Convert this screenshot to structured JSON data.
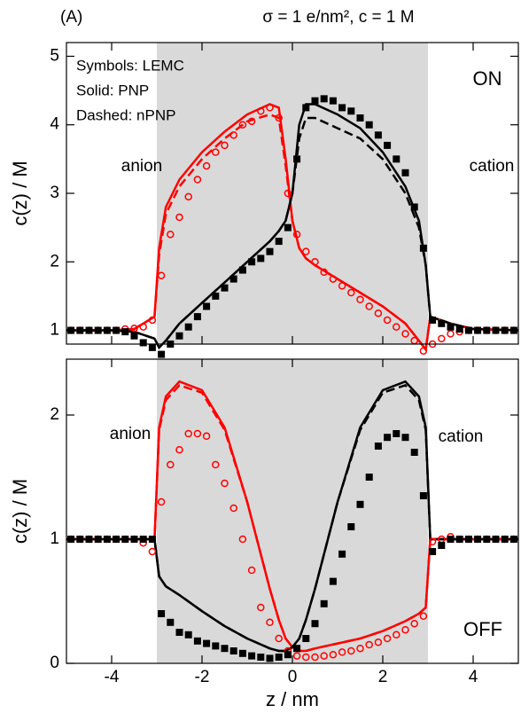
{
  "chart_data": [
    {
      "type": "line",
      "panel_label": "(A)",
      "title": "σ = 1 e/nm², c = 1 M",
      "ylabel": "c(z) / M",
      "xlim": [
        -5,
        5
      ],
      "xticks": [
        -4,
        -2,
        0,
        2,
        4
      ],
      "show_xtick_labels": false,
      "ylim": [
        0.8,
        5.2
      ],
      "yticks": [
        1,
        2,
        3,
        4,
        5
      ],
      "shade": [
        -3,
        3
      ],
      "shade_color": "#d9d9d9",
      "legend_text": [
        "Symbols: LEMC",
        "Solid: PNP",
        "Dashed: nPNP"
      ],
      "annotations": [
        {
          "text": "anion",
          "color": "#ff0000"
        },
        {
          "text": "cation",
          "color": "#000000"
        },
        {
          "text": "ON",
          "color": "#000000"
        }
      ],
      "series": [
        {
          "color": "#ff0000",
          "dash": false,
          "x": [
            -5,
            -4,
            -3.5,
            -3.05,
            -2.95,
            -2.8,
            -2.5,
            -2,
            -1.5,
            -1,
            -0.5,
            -0.3,
            -0.15,
            0,
            0.15,
            0.3,
            0.5,
            1,
            1.5,
            2,
            2.5,
            2.8,
            2.95,
            3.05,
            3.5,
            4,
            5
          ],
          "values": [
            1.0,
            1.0,
            1.02,
            1.2,
            2.2,
            2.8,
            3.2,
            3.6,
            3.9,
            4.15,
            4.3,
            4.25,
            3.5,
            2.6,
            2.2,
            2.05,
            1.95,
            1.75,
            1.55,
            1.35,
            1.1,
            0.85,
            0.72,
            1.2,
            1.1,
            1.02,
            1.0
          ]
        },
        {
          "color": "#000000",
          "dash": false,
          "x": [
            -5,
            -4,
            -3.5,
            -3.05,
            -2.95,
            -2.8,
            -2.5,
            -2,
            -1.5,
            -1,
            -0.5,
            -0.3,
            -0.15,
            0,
            0.15,
            0.3,
            0.5,
            1,
            1.5,
            2,
            2.5,
            2.8,
            2.95,
            3.05,
            3.5,
            4,
            5
          ],
          "values": [
            1.0,
            1.0,
            0.98,
            0.88,
            0.75,
            0.85,
            1.1,
            1.4,
            1.7,
            2.0,
            2.3,
            2.45,
            2.6,
            3.0,
            4.0,
            4.3,
            4.3,
            4.15,
            3.95,
            3.6,
            3.1,
            2.6,
            1.95,
            1.2,
            1.1,
            1.02,
            1.0
          ]
        },
        {
          "color": "#ff0000",
          "dash": true,
          "x": [
            -5,
            -4,
            -3.5,
            -3.05,
            -2.95,
            -2.8,
            -2.5,
            -2,
            -1.5,
            -1,
            -0.5,
            -0.3,
            -0.15,
            0,
            0.15,
            0.3,
            0.5,
            1,
            1.5,
            2,
            2.5,
            2.8,
            2.95,
            3.05,
            3.5,
            4,
            5
          ],
          "values": [
            1.0,
            1.0,
            1.02,
            1.2,
            2.1,
            2.7,
            3.1,
            3.5,
            3.8,
            4.05,
            4.15,
            4.1,
            3.4,
            2.6,
            2.2,
            2.05,
            1.95,
            1.75,
            1.55,
            1.35,
            1.1,
            0.85,
            0.72,
            1.2,
            1.1,
            1.02,
            1.0
          ]
        },
        {
          "color": "#000000",
          "dash": true,
          "x": [
            -5,
            -4,
            -3.5,
            -3.05,
            -2.95,
            -2.8,
            -2.5,
            -2,
            -1.5,
            -1,
            -0.5,
            -0.3,
            -0.15,
            0,
            0.15,
            0.3,
            0.5,
            1,
            1.5,
            2,
            2.5,
            2.8,
            2.95,
            3.05,
            3.5,
            4,
            5
          ],
          "values": [
            1.0,
            1.0,
            0.98,
            0.88,
            0.75,
            0.85,
            1.1,
            1.4,
            1.7,
            2.0,
            2.3,
            2.45,
            2.6,
            3.0,
            3.8,
            4.1,
            4.1,
            3.95,
            3.8,
            3.5,
            3.0,
            2.5,
            1.95,
            1.2,
            1.1,
            1.02,
            1.0
          ]
        },
        {
          "color": "#ff0000",
          "marker": "circle",
          "x": [
            -4.9,
            -4.7,
            -4.5,
            -4.3,
            -4.1,
            -3.9,
            -3.7,
            -3.5,
            -3.3,
            -3.1,
            -2.9,
            -2.7,
            -2.5,
            -2.3,
            -2.1,
            -1.9,
            -1.7,
            -1.5,
            -1.3,
            -1.1,
            -0.9,
            -0.7,
            -0.5,
            -0.3,
            -0.1,
            0.1,
            0.3,
            0.5,
            0.7,
            0.9,
            1.1,
            1.3,
            1.5,
            1.7,
            1.9,
            2.1,
            2.3,
            2.5,
            2.7,
            2.9,
            3.1,
            3.3,
            3.5,
            3.7,
            3.9,
            4.1,
            4.3,
            4.5,
            4.7,
            4.9
          ],
          "values": [
            1.0,
            1.0,
            1.0,
            1.0,
            1.0,
            1.0,
            1.02,
            1.03,
            1.05,
            1.15,
            1.8,
            2.4,
            2.65,
            2.95,
            3.2,
            3.4,
            3.6,
            3.7,
            3.85,
            4.0,
            4.05,
            4.2,
            4.25,
            4.1,
            3.0,
            2.4,
            2.15,
            2.0,
            1.85,
            1.75,
            1.65,
            1.55,
            1.45,
            1.35,
            1.25,
            1.15,
            1.05,
            0.95,
            0.85,
            0.7,
            0.8,
            0.88,
            0.95,
            0.98,
            1.0,
            1.0,
            1.0,
            1.0,
            1.0,
            1.0
          ]
        },
        {
          "color": "#000000",
          "marker": "square",
          "x": [
            -4.9,
            -4.7,
            -4.5,
            -4.3,
            -4.1,
            -3.9,
            -3.7,
            -3.5,
            -3.3,
            -3.1,
            -2.9,
            -2.7,
            -2.5,
            -2.3,
            -2.1,
            -1.9,
            -1.7,
            -1.5,
            -1.3,
            -1.1,
            -0.9,
            -0.7,
            -0.5,
            -0.3,
            -0.1,
            0.1,
            0.3,
            0.5,
            0.7,
            0.9,
            1.1,
            1.3,
            1.5,
            1.7,
            1.9,
            2.1,
            2.3,
            2.5,
            2.7,
            2.9,
            3.1,
            3.3,
            3.5,
            3.7,
            3.9,
            4.1,
            4.3,
            4.5,
            4.7,
            4.9
          ],
          "values": [
            1.0,
            1.0,
            1.0,
            1.0,
            1.0,
            1.0,
            0.98,
            0.92,
            0.82,
            0.75,
            0.65,
            0.8,
            0.92,
            1.05,
            1.2,
            1.35,
            1.5,
            1.62,
            1.75,
            1.88,
            2.0,
            2.05,
            2.15,
            2.3,
            2.5,
            3.5,
            4.25,
            4.35,
            4.38,
            4.35,
            4.25,
            4.2,
            4.1,
            4.0,
            3.85,
            3.7,
            3.5,
            3.3,
            2.8,
            2.2,
            1.15,
            1.1,
            1.05,
            1.02,
            1.0,
            1.0,
            1.0,
            1.0,
            1.0,
            1.0
          ]
        }
      ]
    },
    {
      "type": "line",
      "ylabel": "c(z) / M",
      "xlabel": "z / nm",
      "xlim": [
        -5,
        5
      ],
      "xticks": [
        -4,
        -2,
        0,
        2,
        4
      ],
      "show_xtick_labels": true,
      "ylim": [
        0,
        2.45
      ],
      "yticks": [
        0,
        1,
        2
      ],
      "shade": [
        -3,
        3
      ],
      "shade_color": "#d9d9d9",
      "annotations": [
        {
          "text": "anion",
          "color": "#ff0000"
        },
        {
          "text": "cation",
          "color": "#000000"
        },
        {
          "text": "OFF",
          "color": "#000000"
        }
      ],
      "series": [
        {
          "color": "#ff0000",
          "dash": false,
          "x": [
            -5,
            -4,
            -3.5,
            -3.05,
            -2.95,
            -2.8,
            -2.5,
            -2,
            -1.5,
            -1,
            -0.5,
            -0.3,
            -0.15,
            0,
            0.15,
            0.3,
            0.5,
            1,
            1.5,
            2,
            2.5,
            2.8,
            2.95,
            3.05,
            3.5,
            4,
            5
          ],
          "values": [
            1.0,
            1.0,
            1.0,
            1.0,
            1.9,
            2.15,
            2.27,
            2.2,
            1.9,
            1.3,
            0.6,
            0.35,
            0.2,
            0.13,
            0.1,
            0.1,
            0.12,
            0.16,
            0.2,
            0.26,
            0.34,
            0.4,
            0.45,
            1.0,
            1.0,
            1.0,
            1.0
          ]
        },
        {
          "color": "#000000",
          "dash": false,
          "x": [
            -5,
            -4,
            -3.5,
            -3.05,
            -2.95,
            -2.8,
            -2.5,
            -2,
            -1.5,
            -1,
            -0.5,
            -0.3,
            -0.15,
            0,
            0.15,
            0.3,
            0.5,
            1,
            1.5,
            2,
            2.5,
            2.8,
            2.95,
            3.05,
            3.5,
            4,
            5
          ],
          "values": [
            1.0,
            1.0,
            1.0,
            1.0,
            0.7,
            0.62,
            0.55,
            0.42,
            0.3,
            0.2,
            0.12,
            0.1,
            0.1,
            0.13,
            0.2,
            0.35,
            0.6,
            1.3,
            1.9,
            2.2,
            2.27,
            2.15,
            1.9,
            1.0,
            1.0,
            1.0,
            1.0
          ]
        },
        {
          "color": "#ff0000",
          "dash": true,
          "x": [
            -5,
            -4,
            -3.5,
            -3.05,
            -2.95,
            -2.8,
            -2.5,
            -2,
            -1.5,
            -1,
            -0.5,
            -0.3,
            -0.15,
            0,
            0.15,
            0.3,
            0.5,
            1,
            1.5,
            2,
            2.5,
            2.8,
            2.95,
            3.05,
            3.5,
            4,
            5
          ],
          "values": [
            1.0,
            1.0,
            1.0,
            1.0,
            1.88,
            2.12,
            2.24,
            2.18,
            1.88,
            1.3,
            0.6,
            0.35,
            0.2,
            0.13,
            0.1,
            0.1,
            0.12,
            0.16,
            0.2,
            0.26,
            0.34,
            0.4,
            0.45,
            1.0,
            1.0,
            1.0,
            1.0
          ]
        },
        {
          "color": "#000000",
          "dash": true,
          "x": [
            -5,
            -4,
            -3.5,
            -3.05,
            -2.95,
            -2.8,
            -2.5,
            -2,
            -1.5,
            -1,
            -0.5,
            -0.3,
            -0.15,
            0,
            0.15,
            0.3,
            0.5,
            1,
            1.5,
            2,
            2.5,
            2.8,
            2.95,
            3.05,
            3.5,
            4,
            5
          ],
          "values": [
            1.0,
            1.0,
            1.0,
            1.0,
            0.7,
            0.62,
            0.55,
            0.42,
            0.3,
            0.2,
            0.12,
            0.1,
            0.1,
            0.13,
            0.2,
            0.35,
            0.6,
            1.3,
            1.88,
            2.18,
            2.24,
            2.12,
            1.88,
            1.0,
            1.0,
            1.0,
            1.0
          ]
        },
        {
          "color": "#ff0000",
          "marker": "circle",
          "x": [
            -4.9,
            -4.7,
            -4.5,
            -4.3,
            -4.1,
            -3.9,
            -3.7,
            -3.5,
            -3.3,
            -3.1,
            -2.9,
            -2.7,
            -2.5,
            -2.3,
            -2.1,
            -1.9,
            -1.7,
            -1.5,
            -1.3,
            -1.1,
            -0.9,
            -0.7,
            -0.5,
            -0.3,
            -0.1,
            0.1,
            0.3,
            0.5,
            0.7,
            0.9,
            1.1,
            1.3,
            1.5,
            1.7,
            1.9,
            2.1,
            2.3,
            2.5,
            2.7,
            2.9,
            3.1,
            3.3,
            3.5,
            3.7,
            3.9,
            4.1,
            4.3,
            4.5,
            4.7,
            4.9
          ],
          "values": [
            1.0,
            1.0,
            1.0,
            1.0,
            1.0,
            1.0,
            1.0,
            1.0,
            0.97,
            0.9,
            1.3,
            1.6,
            1.72,
            1.85,
            1.85,
            1.83,
            1.6,
            1.45,
            1.25,
            1.0,
            0.75,
            0.45,
            0.33,
            0.2,
            0.1,
            0.06,
            0.05,
            0.05,
            0.06,
            0.07,
            0.09,
            0.1,
            0.12,
            0.15,
            0.17,
            0.2,
            0.23,
            0.27,
            0.32,
            0.38,
            0.98,
            1.0,
            1.02,
            1.0,
            1.0,
            1.0,
            1.0,
            1.0,
            1.0,
            1.0
          ]
        },
        {
          "color": "#000000",
          "marker": "square",
          "x": [
            -4.9,
            -4.7,
            -4.5,
            -4.3,
            -4.1,
            -3.9,
            -3.7,
            -3.5,
            -3.3,
            -3.1,
            -2.9,
            -2.7,
            -2.5,
            -2.3,
            -2.1,
            -1.9,
            -1.7,
            -1.5,
            -1.3,
            -1.1,
            -0.9,
            -0.7,
            -0.5,
            -0.3,
            -0.1,
            0.1,
            0.3,
            0.5,
            0.7,
            0.9,
            1.1,
            1.3,
            1.5,
            1.7,
            1.9,
            2.1,
            2.3,
            2.5,
            2.7,
            2.9,
            3.1,
            3.3,
            3.5,
            3.7,
            3.9,
            4.1,
            4.3,
            4.5,
            4.7,
            4.9
          ],
          "values": [
            1.0,
            1.0,
            1.0,
            1.0,
            1.0,
            1.0,
            1.0,
            1.0,
            1.0,
            1.0,
            0.4,
            0.33,
            0.25,
            0.23,
            0.18,
            0.16,
            0.14,
            0.12,
            0.1,
            0.08,
            0.06,
            0.05,
            0.04,
            0.05,
            0.07,
            0.12,
            0.2,
            0.32,
            0.48,
            0.66,
            0.88,
            1.1,
            1.28,
            1.5,
            1.75,
            1.82,
            1.85,
            1.82,
            1.7,
            1.35,
            0.9,
            0.95,
            1.0,
            1.0,
            1.0,
            1.0,
            1.0,
            1.0,
            1.0,
            1.0
          ]
        }
      ]
    }
  ]
}
